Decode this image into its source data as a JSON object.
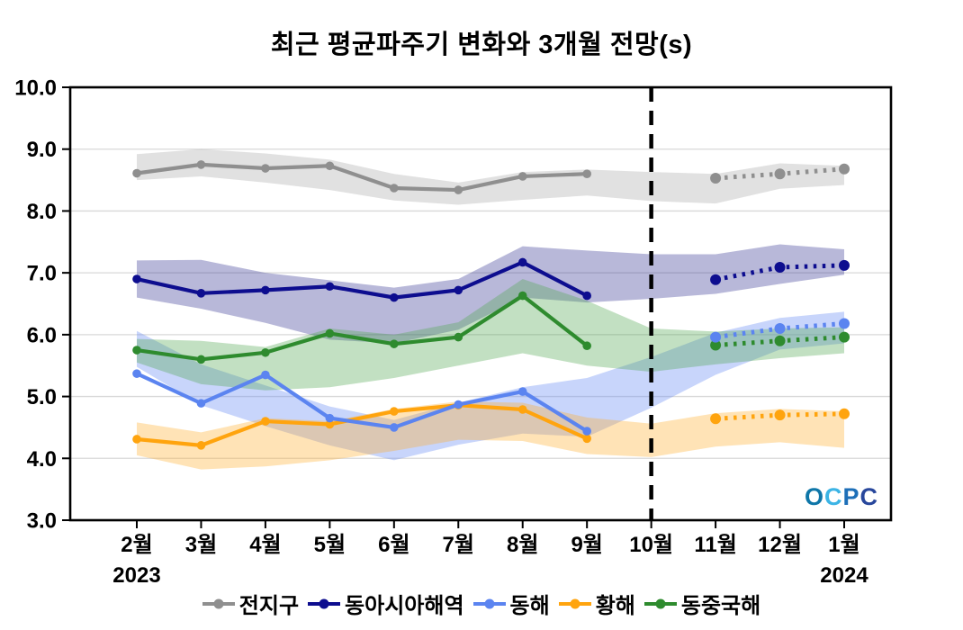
{
  "chart_data": {
    "type": "line",
    "title": "최근 평균파주기 변화와 3개월 전망(s)",
    "unit": "s",
    "x_categories": [
      "2월",
      "3월",
      "4월",
      "5월",
      "6월",
      "7월",
      "8월",
      "9월",
      "10월",
      "11월",
      "12월",
      "1월"
    ],
    "x_year_labels": [
      {
        "index": 0,
        "label": "2023"
      },
      {
        "index": 11,
        "label": "2024"
      }
    ],
    "ylim": [
      3.0,
      10.0
    ],
    "yticks": [
      {
        "value": 10.0,
        "label": "10.0"
      },
      {
        "value": 9.0,
        "label": "9.0"
      },
      {
        "value": 8.0,
        "label": "8.0"
      },
      {
        "value": 7.0,
        "label": "7.0"
      },
      {
        "value": 6.0,
        "label": "6.0"
      },
      {
        "value": 5.0,
        "label": "5.0"
      },
      {
        "value": 4.0,
        "label": "4.0"
      },
      {
        "value": 3.0,
        "label": "3.0"
      }
    ],
    "grid": "horizontal",
    "legend_position": "bottom",
    "forecast_divider_index": 8,
    "forecast_style": "dotted",
    "series": [
      {
        "id": "global",
        "name": "전지구",
        "color": "#8f8f8f",
        "band_color": "rgba(170,170,170,0.35)",
        "observed": [
          8.61,
          8.75,
          8.69,
          8.73,
          8.37,
          8.34,
          8.56,
          8.6,
          null,
          null,
          null,
          null
        ],
        "forecast": [
          null,
          null,
          null,
          null,
          null,
          null,
          null,
          null,
          null,
          8.53,
          8.6,
          8.68
        ],
        "band_upper": [
          8.92,
          9.0,
          8.93,
          8.83,
          8.6,
          8.46,
          8.63,
          8.67,
          8.63,
          8.6,
          8.77,
          8.73
        ],
        "band_lower": [
          8.5,
          8.56,
          8.46,
          8.34,
          8.17,
          8.1,
          8.18,
          8.25,
          8.16,
          8.12,
          8.36,
          8.42
        ]
      },
      {
        "id": "east-asia",
        "name": "동아시아해역",
        "color": "#0d0d8f",
        "band_color": "rgba(40,40,140,0.33)",
        "observed": [
          6.9,
          6.67,
          6.72,
          6.78,
          6.6,
          6.72,
          7.17,
          6.63,
          null,
          null,
          null,
          null
        ],
        "forecast": [
          null,
          null,
          null,
          null,
          null,
          null,
          null,
          null,
          null,
          6.89,
          7.09,
          7.12
        ],
        "band_upper": [
          7.2,
          7.21,
          7.0,
          6.88,
          6.76,
          6.9,
          7.43,
          7.36,
          7.3,
          7.3,
          7.46,
          7.38
        ],
        "band_lower": [
          6.6,
          6.42,
          6.19,
          5.92,
          5.86,
          6.08,
          6.6,
          6.52,
          6.58,
          6.66,
          6.82,
          6.97
        ]
      },
      {
        "id": "east-sea",
        "name": "동해",
        "color": "#5b84f0",
        "band_color": "rgba(110,145,245,0.38)",
        "observed": [
          5.37,
          4.89,
          5.35,
          4.65,
          4.5,
          4.87,
          5.08,
          4.44,
          null,
          null,
          null,
          null
        ],
        "forecast": [
          null,
          null,
          null,
          null,
          null,
          null,
          null,
          null,
          null,
          5.96,
          6.1,
          6.18
        ],
        "band_upper": [
          6.06,
          5.52,
          5.18,
          4.84,
          4.62,
          4.9,
          5.15,
          5.3,
          5.64,
          6.03,
          6.27,
          6.37
        ],
        "band_lower": [
          5.48,
          4.86,
          4.52,
          4.21,
          3.97,
          4.22,
          4.4,
          4.35,
          4.82,
          5.35,
          5.76,
          5.86
        ]
      },
      {
        "id": "yellow-sea",
        "name": "황해",
        "color": "#ffa40e",
        "band_color": "rgba(255,175,45,0.35)",
        "observed": [
          4.31,
          4.21,
          4.6,
          4.55,
          4.76,
          4.86,
          4.79,
          4.32,
          null,
          null,
          null,
          null
        ],
        "forecast": [
          null,
          null,
          null,
          null,
          null,
          null,
          null,
          null,
          null,
          4.64,
          4.7,
          4.72
        ],
        "band_upper": [
          4.58,
          4.42,
          4.65,
          4.6,
          4.8,
          4.92,
          4.9,
          4.66,
          4.56,
          4.73,
          4.8,
          4.76
        ],
        "band_lower": [
          4.05,
          3.82,
          3.87,
          3.97,
          4.12,
          4.3,
          4.28,
          4.07,
          4.02,
          4.19,
          4.26,
          4.17
        ]
      },
      {
        "id": "east-china-sea",
        "name": "동중국해",
        "color": "#2e8b2e",
        "band_color": "rgba(80,165,80,0.35)",
        "observed": [
          5.75,
          5.6,
          5.71,
          6.02,
          5.85,
          5.96,
          6.63,
          5.82,
          null,
          null,
          null,
          null
        ],
        "forecast": [
          null,
          null,
          null,
          null,
          null,
          null,
          null,
          null,
          null,
          5.83,
          5.9,
          5.96
        ],
        "band_upper": [
          5.93,
          5.9,
          5.8,
          6.1,
          6.0,
          6.2,
          6.9,
          6.55,
          6.1,
          6.05,
          6.1,
          6.12
        ],
        "band_lower": [
          5.55,
          5.2,
          5.1,
          5.15,
          5.3,
          5.5,
          5.7,
          5.5,
          5.4,
          5.52,
          5.62,
          5.7
        ]
      }
    ]
  },
  "logo": {
    "text": "OCPC",
    "letters": [
      {
        "ch": "O",
        "color": "#0e76a8"
      },
      {
        "ch": "C",
        "color": "#3cb4e5"
      },
      {
        "ch": "P",
        "color": "#1d6fb8"
      },
      {
        "ch": "C",
        "color": "#28479c"
      }
    ]
  }
}
